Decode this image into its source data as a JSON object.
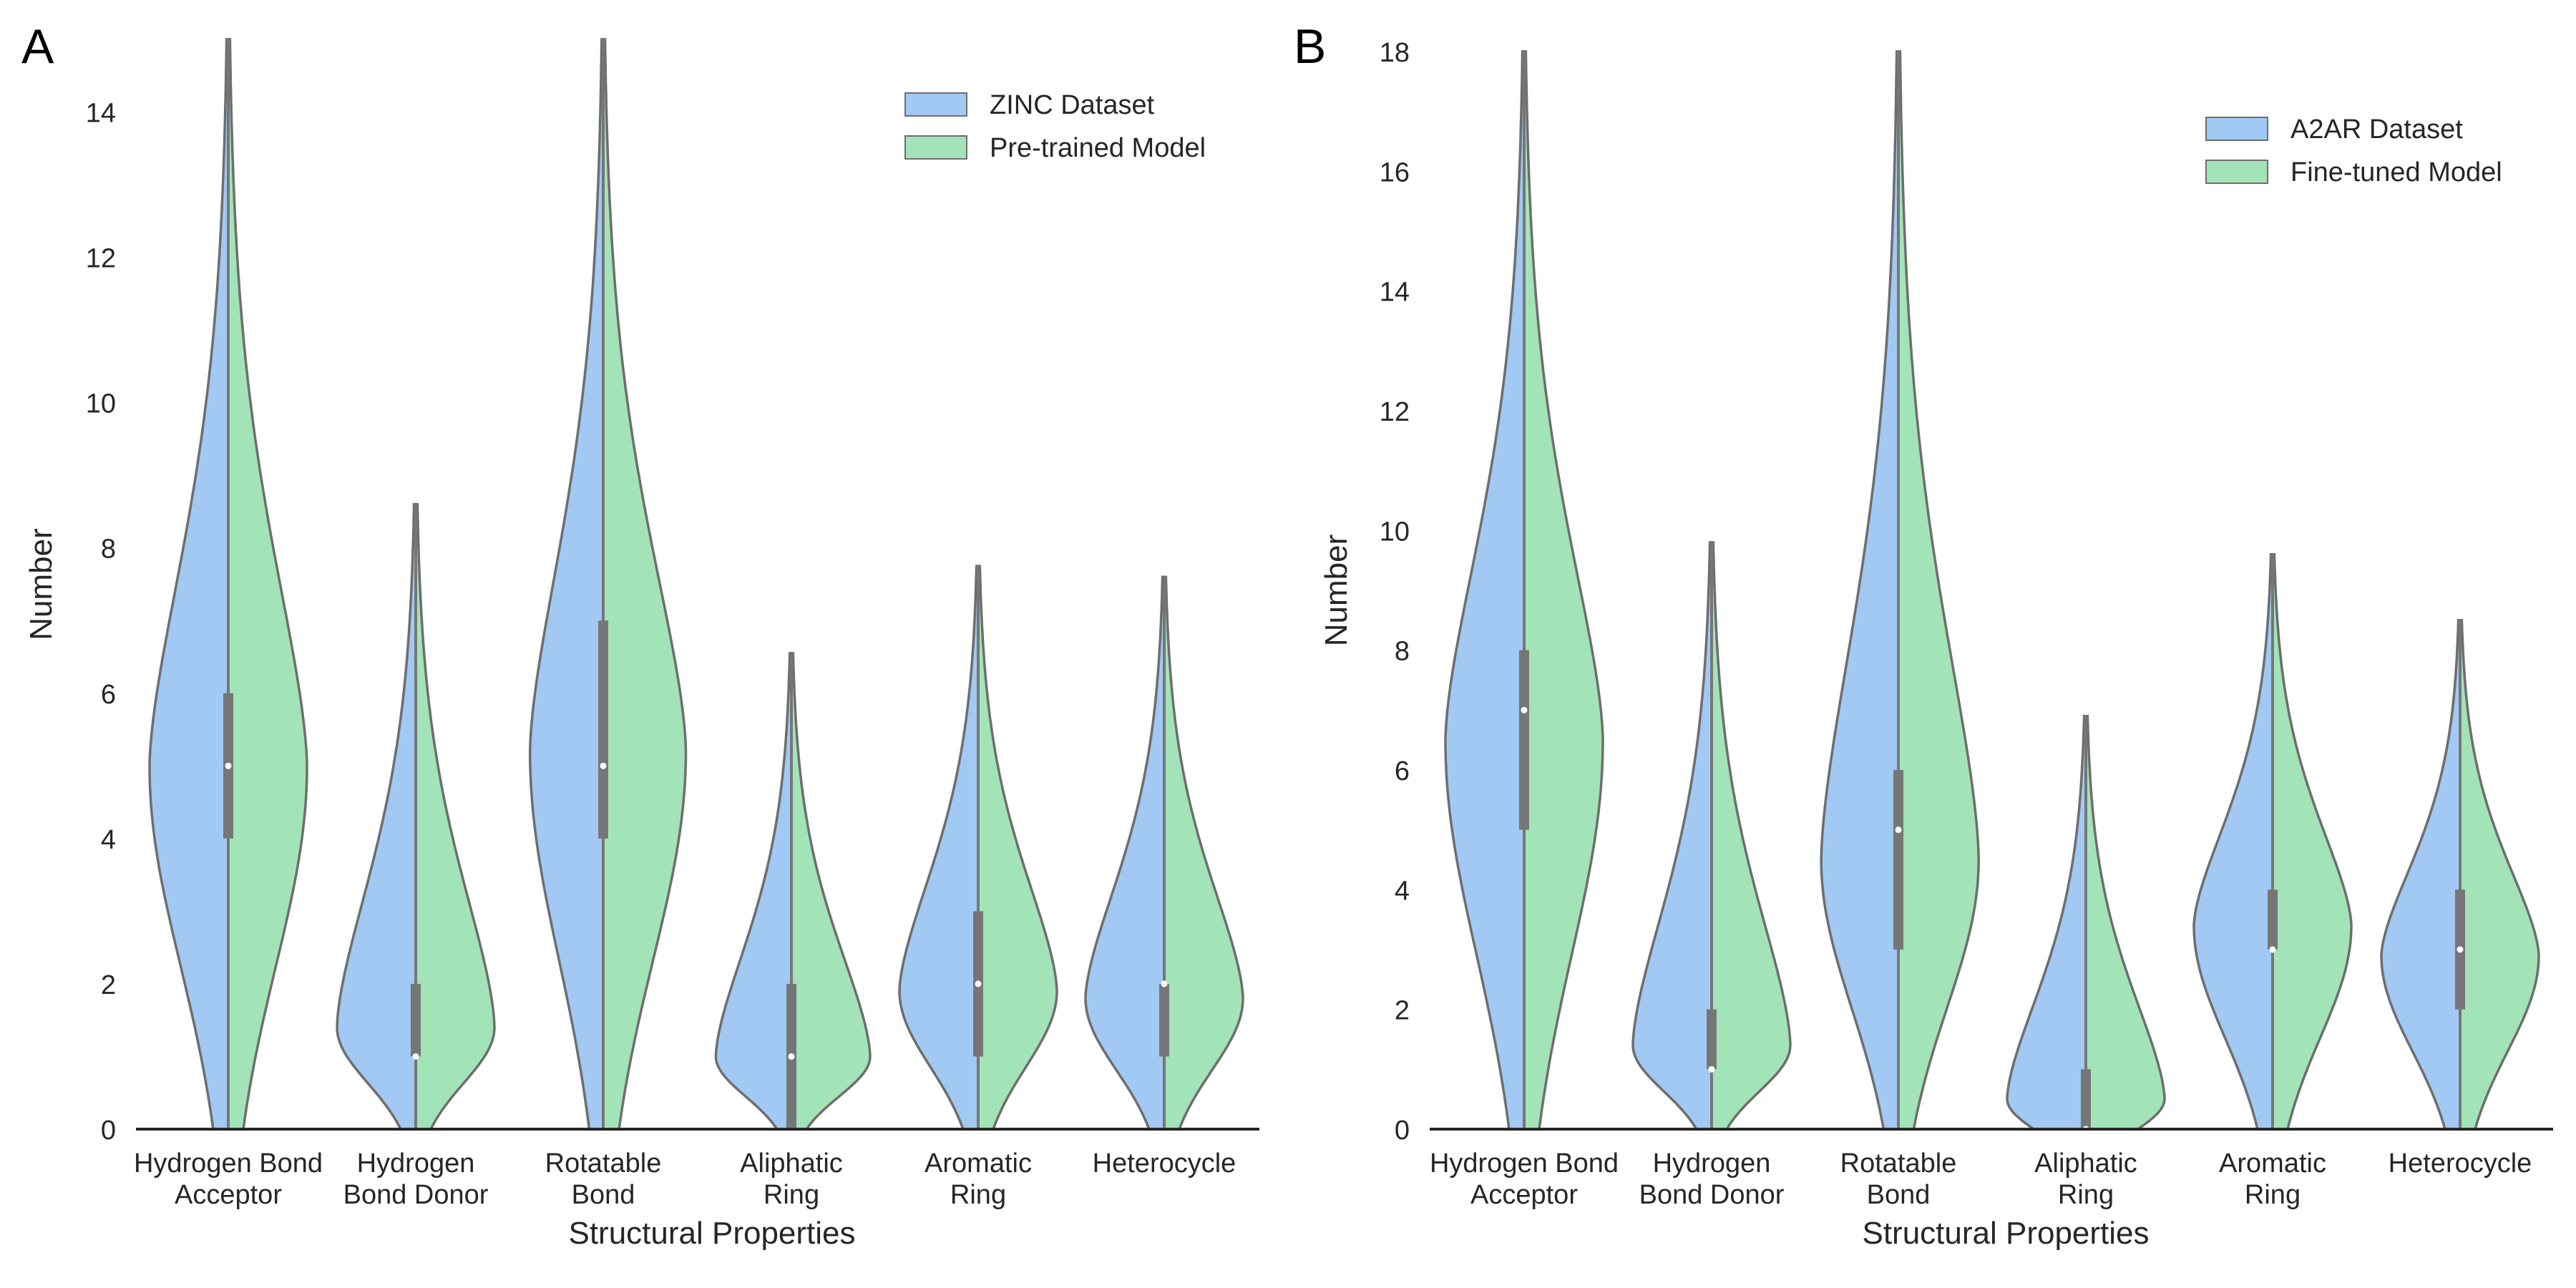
{
  "colors": {
    "left_half": "#a1c9f4",
    "right_half": "#a2e4b8",
    "outline": "#6e6e6e",
    "box": "#767676",
    "axis": "#262626"
  },
  "chart_data": [
    {
      "type": "violin",
      "panel_label": "A",
      "xlabel": "Structural Properties",
      "ylabel": "Number",
      "ylim": [
        0,
        15
      ],
      "yticks": [
        0,
        2,
        4,
        6,
        8,
        10,
        12,
        14
      ],
      "grid": false,
      "legend_position": "top-right",
      "categories": [
        [
          "Hydrogen Bond",
          "Acceptor"
        ],
        [
          "Hydrogen",
          "Bond Donor"
        ],
        [
          "Rotatable",
          "Bond"
        ],
        [
          "Aliphatic",
          "Ring"
        ],
        [
          "Aromatic",
          "Ring"
        ],
        [
          "Heterocycle"
        ]
      ],
      "legend": [
        "ZINC Dataset",
        "Pre-trained Model"
      ],
      "series": [
        {
          "name": "ZINC Dataset",
          "half": "left"
        },
        {
          "name": "Pre-trained Model",
          "half": "right"
        }
      ],
      "violins": [
        {
          "range": [
            0,
            15
          ],
          "mode": 5.0,
          "median": 5,
          "q1": 4,
          "q3": 6,
          "left_width": 1.0,
          "right_width": 1.0
        },
        {
          "range": [
            0,
            8.6
          ],
          "mode": 1.4,
          "median": 1,
          "q1": 1,
          "q3": 2,
          "left_width": 1.0,
          "right_width": 1.0
        },
        {
          "range": [
            0,
            15
          ],
          "mode": 5.2,
          "median": 5,
          "q1": 4,
          "q3": 7,
          "left_width": 0.93,
          "right_width": 1.05
        },
        {
          "range": [
            0,
            6.55
          ],
          "mode": 1.0,
          "median": 1,
          "q1": 0,
          "q3": 2,
          "left_width": 0.96,
          "right_width": 1.0
        },
        {
          "range": [
            0,
            7.75
          ],
          "mode": 1.9,
          "median": 2,
          "q1": 1,
          "q3": 3,
          "left_width": 1.0,
          "right_width": 1.0
        },
        {
          "range": [
            0,
            7.6
          ],
          "mode": 1.8,
          "median": 2,
          "q1": 1,
          "q3": 2,
          "left_width": 1.0,
          "right_width": 1.0
        }
      ]
    },
    {
      "type": "violin",
      "panel_label": "B",
      "xlabel": "Structural Properties",
      "ylabel": "Number",
      "ylim": [
        0,
        18
      ],
      "yticks": [
        0,
        2,
        4,
        6,
        8,
        10,
        12,
        14,
        16,
        18
      ],
      "grid": false,
      "legend_position": "top-right",
      "categories": [
        [
          "Hydrogen Bond",
          "Acceptor"
        ],
        [
          "Hydrogen",
          "Bond Donor"
        ],
        [
          "Rotatable",
          "Bond"
        ],
        [
          "Aliphatic",
          "Ring"
        ],
        [
          "Aromatic",
          "Ring"
        ],
        [
          "Heterocycle"
        ]
      ],
      "legend": [
        "A2AR Dataset",
        "Fine-tuned Model"
      ],
      "series": [
        {
          "name": "A2AR Dataset",
          "half": "left"
        },
        {
          "name": "Fine-tuned Model",
          "half": "right"
        }
      ],
      "violins": [
        {
          "range": [
            0,
            18
          ],
          "mode": 6.5,
          "median": 7,
          "q1": 5,
          "q3": 8,
          "left_width": 1.0,
          "right_width": 1.0
        },
        {
          "range": [
            0,
            9.8
          ],
          "mode": 1.4,
          "median": 1,
          "q1": 1,
          "q3": 2,
          "left_width": 1.0,
          "right_width": 1.0
        },
        {
          "range": [
            0,
            18
          ],
          "mode": 4.5,
          "median": 5,
          "q1": 3,
          "q3": 6,
          "left_width": 0.98,
          "right_width": 1.02
        },
        {
          "range": [
            0,
            6.9
          ],
          "mode": 0.5,
          "median": 0,
          "q1": 0,
          "q3": 1,
          "left_width": 1.0,
          "right_width": 1.0
        },
        {
          "range": [
            0,
            9.6
          ],
          "mode": 3.4,
          "median": 3,
          "q1": 3,
          "q3": 4,
          "left_width": 1.0,
          "right_width": 1.0
        },
        {
          "range": [
            0,
            8.5
          ],
          "mode": 2.9,
          "median": 3,
          "q1": 2,
          "q3": 4,
          "left_width": 1.0,
          "right_width": 1.0
        }
      ]
    }
  ]
}
